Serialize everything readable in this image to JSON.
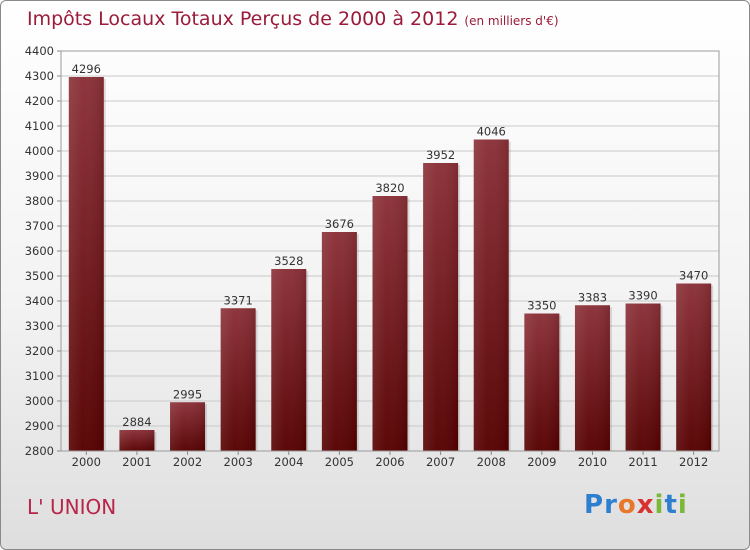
{
  "header": {
    "title": "Impôts Locaux Totaux Perçus de 2000 à 2012",
    "unit": "(en milliers d'€)"
  },
  "footer": {
    "commune": "L' UNION",
    "logo_text": "Proxiti"
  },
  "colors": {
    "bar_top": "#8b3038",
    "bar_bottom": "#560000",
    "title": "#9b1b3a"
  },
  "chart_data": {
    "type": "bar",
    "title": "Impôts Locaux Totaux Perçus de 2000 à 2012",
    "subtitle": "(en milliers d'€)",
    "categories": [
      "2000",
      "2001",
      "2002",
      "2003",
      "2004",
      "2005",
      "2006",
      "2007",
      "2008",
      "2009",
      "2010",
      "2011",
      "2012"
    ],
    "values": [
      4296,
      2884,
      2995,
      3371,
      3528,
      3676,
      3820,
      3952,
      4046,
      3350,
      3383,
      3390,
      3470
    ],
    "ylim": [
      2800,
      4400
    ],
    "yticks": [
      2800,
      2900,
      3000,
      3100,
      3200,
      3300,
      3400,
      3500,
      3600,
      3700,
      3800,
      3900,
      4000,
      4100,
      4200,
      4300,
      4400
    ],
    "grid": true,
    "data_labels": true
  }
}
